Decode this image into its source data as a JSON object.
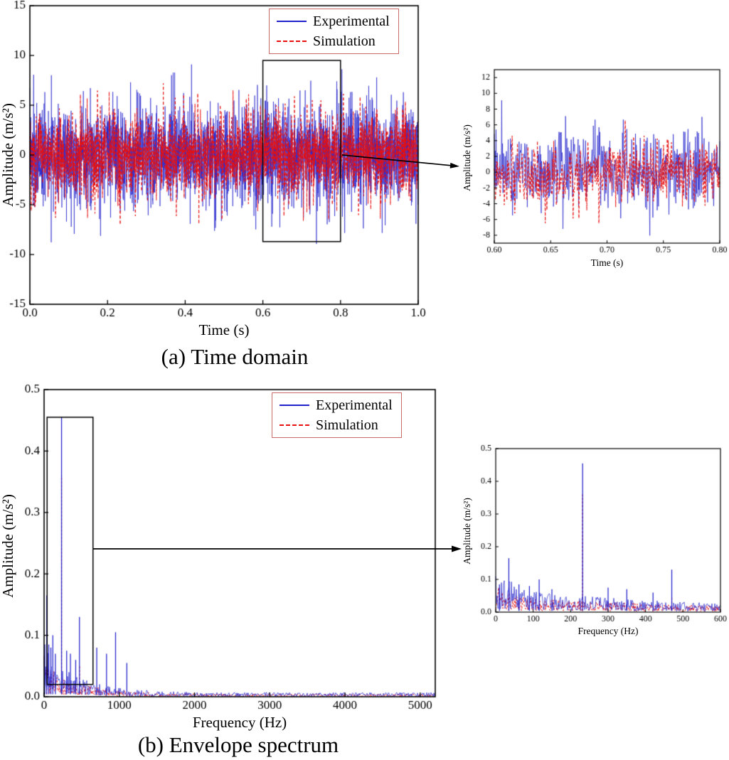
{
  "figure": {
    "caption_a": "(a) Time domain",
    "caption_b": "(b) Envelope spectrum"
  },
  "legend": {
    "experimental": "Experimental",
    "simulation": "Simulation",
    "experimental_color": "#2222cc",
    "simulation_color": "#e81010",
    "frame_color": "#c96a6a"
  },
  "chart_data": [
    {
      "id": "time_main",
      "type": "line",
      "title": "",
      "xlabel": "Time (s)",
      "ylabel": "Amplitude (m/s²)",
      "xlim": [
        0,
        1
      ],
      "ylim": [
        -15,
        15
      ],
      "xticks": [
        0,
        0.2,
        0.4,
        0.6,
        0.8,
        1.0
      ],
      "xtick_labels": [
        "0.0",
        "0.2",
        "0.4",
        "0.6",
        "0.8",
        "1.0"
      ],
      "yticks": [
        -15,
        -10,
        -5,
        0,
        5,
        10,
        15
      ],
      "ytick_labels": [
        "-15",
        "-10",
        "-5",
        "0",
        "5",
        "10",
        "15"
      ],
      "grid": false,
      "legend_entries": [
        "Experimental",
        "Simulation"
      ],
      "legend_position": "upper right",
      "zoom_box": {
        "x": [
          0.6,
          0.8
        ],
        "y": [
          -8.7,
          9.5
        ]
      },
      "series": [
        {
          "name": "Experimental",
          "kind": "time_noise",
          "color": "#2222cc",
          "line_width": 0.65,
          "dash": [],
          "seed": 7,
          "n": 2600,
          "std": 2.45,
          "spike_prob": 0.006,
          "spike_base": 6.2,
          "spike_extra": 3.6,
          "clip": 10.1,
          "rms": 2.45,
          "peak_amplitude": 10
        },
        {
          "name": "Simulation",
          "kind": "time_noise",
          "color": "#e81010",
          "line_width": 1.0,
          "dash": [
            4,
            3
          ],
          "seed": 91,
          "n": 2000,
          "std": 2.1,
          "spike_prob": 0.005,
          "spike_base": 5.0,
          "spike_extra": 2.0,
          "clip": 7.2,
          "rms": 2.1,
          "peak_amplitude": 7
        }
      ]
    },
    {
      "id": "time_inset",
      "type": "line",
      "title": "",
      "xlabel": "Time (s)",
      "ylabel": "Amplitude (m/s²)",
      "xlim": [
        0.6,
        0.8
      ],
      "ylim": [
        -9,
        13
      ],
      "xticks": [
        0.6,
        0.65,
        0.7,
        0.75,
        0.8
      ],
      "xtick_labels": [
        "0.60",
        "0.65",
        "0.70",
        "0.75",
        "0.80"
      ],
      "yticks": [
        -8,
        -6,
        -4,
        -2,
        0,
        2,
        4,
        6,
        8,
        10,
        12
      ],
      "ytick_labels": [
        "-8",
        "-6",
        "-4",
        "-2",
        "0",
        "2",
        "4",
        "6",
        "8",
        "10",
        "12"
      ],
      "grid": false,
      "zoom_box": null,
      "series": [
        {
          "name": "Experimental",
          "kind": "time_noise",
          "color": "#2222cc",
          "line_width": 0.7,
          "dash": [],
          "seed": 23,
          "n": 520,
          "std": 2.45,
          "spike_prob": 0.006,
          "spike_base": 6.5,
          "spike_extra": 4.5,
          "clip": 11.2,
          "rms": 2.45,
          "peak_amplitude": 11
        },
        {
          "name": "Simulation",
          "kind": "time_noise",
          "color": "#e81010",
          "line_width": 1.0,
          "dash": [
            4,
            2.5
          ],
          "seed": 57,
          "n": 430,
          "std": 2.1,
          "spike_prob": 0.005,
          "spike_base": 5.0,
          "spike_extra": 2.0,
          "clip": 7.2,
          "rms": 2.1,
          "peak_amplitude": 7
        }
      ]
    },
    {
      "id": "spec_main",
      "type": "line",
      "title": "",
      "xlabel": "Frequency (Hz)",
      "ylabel": "Amplitude (m/s²)",
      "xlim": [
        0,
        5200
      ],
      "ylim": [
        0,
        0.5
      ],
      "xticks": [
        0,
        1000,
        2000,
        3000,
        4000,
        5000
      ],
      "xtick_labels": [
        "0",
        "1000",
        "2000",
        "3000",
        "4000",
        "5000"
      ],
      "yticks": [
        0,
        0.1,
        0.2,
        0.3,
        0.4,
        0.5
      ],
      "ytick_labels": [
        "0.0",
        "0.1",
        "0.2",
        "0.3",
        "0.4",
        "0.5"
      ],
      "grid": false,
      "legend_entries": [
        "Experimental",
        "Simulation"
      ],
      "legend_position": "upper right",
      "zoom_box": {
        "x": [
          40,
          650
        ],
        "y": [
          0.02,
          0.455
        ]
      },
      "main_peak": {
        "frequency_hz": 232,
        "experimental_amplitude": 0.455,
        "simulation_amplitude": 0.36
      },
      "series": [
        {
          "name": "Simulation",
          "kind": "spectrum",
          "color": "#e81010",
          "line_width": 0.9,
          "dash": [
            3,
            2.2
          ],
          "seed": 41,
          "floor_a": 0.034,
          "floor_tau": 470,
          "floor_b": 0.003,
          "noise_lo": 0.15,
          "noise_hi": 1.5,
          "peaks": [
            [
              35,
              0.06
            ],
            [
              232,
              0.36
            ],
            [
              470,
              0.05
            ]
          ]
        },
        {
          "name": "Experimental",
          "kind": "spectrum",
          "color": "#2222cc",
          "line_width": 0.7,
          "dash": [],
          "seed": 17,
          "floor_a": 0.042,
          "floor_tau": 470,
          "floor_b": 0.004,
          "noise_lo": 0.15,
          "noise_hi": 1.7,
          "peaks": [
            [
              10,
              0.085
            ],
            [
              35,
              0.165
            ],
            [
              62,
              0.085
            ],
            [
              90,
              0.08
            ],
            [
              116,
              0.1
            ],
            [
              150,
              0.07
            ],
            [
              232,
              0.455
            ],
            [
              300,
              0.075
            ],
            [
              350,
              0.07
            ],
            [
              420,
              0.06
            ],
            [
              470,
              0.13
            ],
            [
              700,
              0.08
            ],
            [
              830,
              0.07
            ],
            [
              950,
              0.105
            ],
            [
              1100,
              0.055
            ]
          ]
        }
      ]
    },
    {
      "id": "spec_inset",
      "type": "line",
      "title": "",
      "xlabel": "Frequency (Hz)",
      "ylabel": "Amplitude (m/s²)",
      "xlim": [
        0,
        600
      ],
      "ylim": [
        0,
        0.5
      ],
      "xticks": [
        0,
        100,
        200,
        300,
        400,
        500,
        600
      ],
      "xtick_labels": [
        "0",
        "100",
        "200",
        "300",
        "400",
        "500",
        "600"
      ],
      "yticks": [
        0,
        0.1,
        0.2,
        0.3,
        0.4,
        0.5
      ],
      "ytick_labels": [
        "0.0",
        "0.1",
        "0.2",
        "0.3",
        "0.4",
        "0.5"
      ],
      "grid": false,
      "zoom_box": null,
      "main_peak": {
        "frequency_hz": 232,
        "experimental_amplitude": 0.455,
        "simulation_amplitude": 0.36
      },
      "series": [
        {
          "name": "Simulation",
          "kind": "spectrum",
          "color": "#e81010",
          "line_width": 0.9,
          "dash": [
            3,
            2.2
          ],
          "seed": 19,
          "floor_a": 0.034,
          "floor_tau": 470,
          "floor_b": 0.003,
          "noise_lo": 0.15,
          "noise_hi": 1.5,
          "peaks": [
            [
              35,
              0.06
            ],
            [
              232,
              0.36
            ],
            [
              470,
              0.05
            ]
          ]
        },
        {
          "name": "Experimental",
          "kind": "spectrum",
          "color": "#2222cc",
          "line_width": 0.7,
          "dash": [],
          "seed": 43,
          "floor_a": 0.042,
          "floor_tau": 470,
          "floor_b": 0.004,
          "noise_lo": 0.15,
          "noise_hi": 1.7,
          "peaks": [
            [
              10,
              0.085
            ],
            [
              35,
              0.165
            ],
            [
              62,
              0.085
            ],
            [
              90,
              0.08
            ],
            [
              116,
              0.1
            ],
            [
              150,
              0.07
            ],
            [
              232,
              0.455
            ],
            [
              300,
              0.075
            ],
            [
              350,
              0.07
            ],
            [
              420,
              0.06
            ],
            [
              470,
              0.13
            ]
          ]
        }
      ]
    }
  ]
}
